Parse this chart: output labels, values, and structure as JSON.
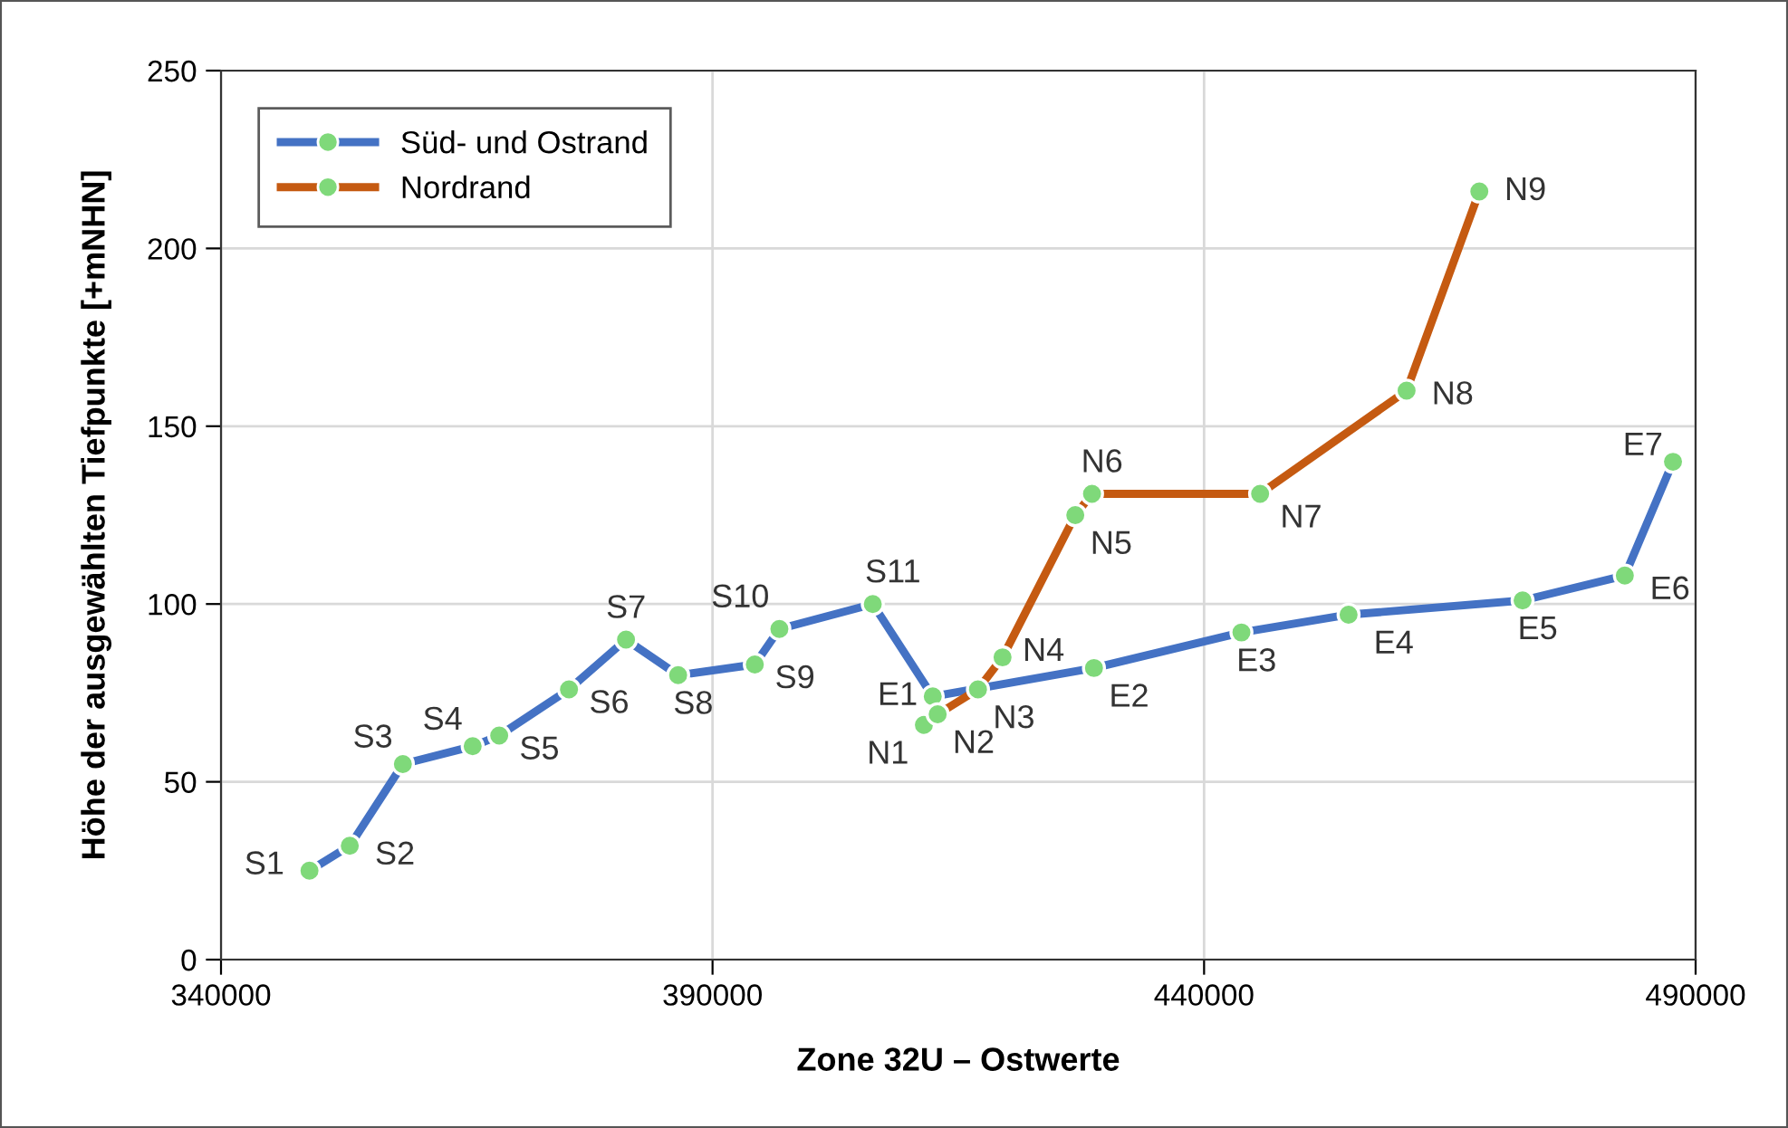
{
  "chart_data": {
    "type": "line",
    "xlabel": "Zone 32U – Ostwerte",
    "ylabel": "Höhe der ausgewählten Tiefpunkte [+mNHN]",
    "xlim": [
      340000,
      490000
    ],
    "xticks": [
      340000,
      390000,
      440000,
      490000
    ],
    "ylim": [
      0,
      250
    ],
    "yticks": [
      0,
      50,
      100,
      150,
      200,
      250
    ],
    "grid": true,
    "legend": "top left",
    "marker": "circle",
    "line_style": "solid",
    "series": [
      {
        "name": "Süd- und Ostrand",
        "color": "#4472c4",
        "colors": [
          "#7fd97a",
          "#7fd97a",
          "#7fd97a",
          "#7fd97a",
          "#7fd97a",
          "#7fd97a",
          "#7fd97a",
          "#7fd97a",
          "#7fd97a",
          "#7fd97a",
          "#7fd97a",
          "#7fd97a",
          "#7fd97a",
          "#7fd97a",
          "#7fd97a",
          "#7fd97a",
          "#7fd97a",
          "#7fd97a"
        ],
        "x": [
          349000,
          353100,
          358500,
          365600,
          368300,
          375400,
          381200,
          386500,
          394300,
          396800,
          406300,
          412400,
          428800,
          443800,
          454700,
          472400,
          482800,
          487700
        ],
        "values": [
          25,
          32,
          55,
          60,
          63,
          76,
          90,
          80,
          83,
          93,
          100,
          74,
          82,
          92,
          97,
          101,
          108,
          140
        ]
      },
      {
        "name": "Nordrand",
        "color": "#c55a11",
        "colors": [
          "#7fd97a",
          "#7fd97a",
          "#7fd97a",
          "#7fd97a",
          "#7fd97a",
          "#7fd97a",
          "#7fd97a",
          "#7fd97a",
          "#7fd97a"
        ],
        "x": [
          411500,
          412900,
          417000,
          419500,
          426900,
          428600,
          445700,
          460600,
          468000
        ],
        "values": [
          66,
          69,
          76,
          85,
          125,
          131,
          131,
          160,
          216
        ]
      }
    ],
    "annotations": [
      {
        "text": "S1",
        "x": 349000,
        "y": 25
      },
      {
        "text": "S2",
        "x": 353100,
        "y": 32
      },
      {
        "text": "S3",
        "x": 358500,
        "y": 55
      },
      {
        "text": "S4",
        "x": 365600,
        "y": 60
      },
      {
        "text": "S5",
        "x": 368300,
        "y": 63
      },
      {
        "text": "S6",
        "x": 375400,
        "y": 76
      },
      {
        "text": "S7",
        "x": 381200,
        "y": 90
      },
      {
        "text": "S8",
        "x": 386500,
        "y": 80
      },
      {
        "text": "S9",
        "x": 394300,
        "y": 83
      },
      {
        "text": "S10",
        "x": 396800,
        "y": 93
      },
      {
        "text": "S11",
        "x": 406300,
        "y": 100
      },
      {
        "text": "E1",
        "x": 412400,
        "y": 74
      },
      {
        "text": "E2",
        "x": 428800,
        "y": 82
      },
      {
        "text": "E3",
        "x": 443800,
        "y": 92
      },
      {
        "text": "E4",
        "x": 454700,
        "y": 97
      },
      {
        "text": "E5",
        "x": 472400,
        "y": 101
      },
      {
        "text": "E6",
        "x": 482800,
        "y": 108
      },
      {
        "text": "E7",
        "x": 487700,
        "y": 140
      },
      {
        "text": "N1",
        "x": 411500,
        "y": 66
      },
      {
        "text": "N2",
        "x": 412900,
        "y": 69
      },
      {
        "text": "N3",
        "x": 417000,
        "y": 76
      },
      {
        "text": "N4",
        "x": 419500,
        "y": 85
      },
      {
        "text": "N5",
        "x": 426900,
        "y": 125
      },
      {
        "text": "N6",
        "x": 428600,
        "y": 131
      },
      {
        "text": "N7",
        "x": 445700,
        "y": 131
      },
      {
        "text": "N8",
        "x": 460600,
        "y": 160
      },
      {
        "text": "N9",
        "x": 468000,
        "y": 216
      }
    ]
  }
}
